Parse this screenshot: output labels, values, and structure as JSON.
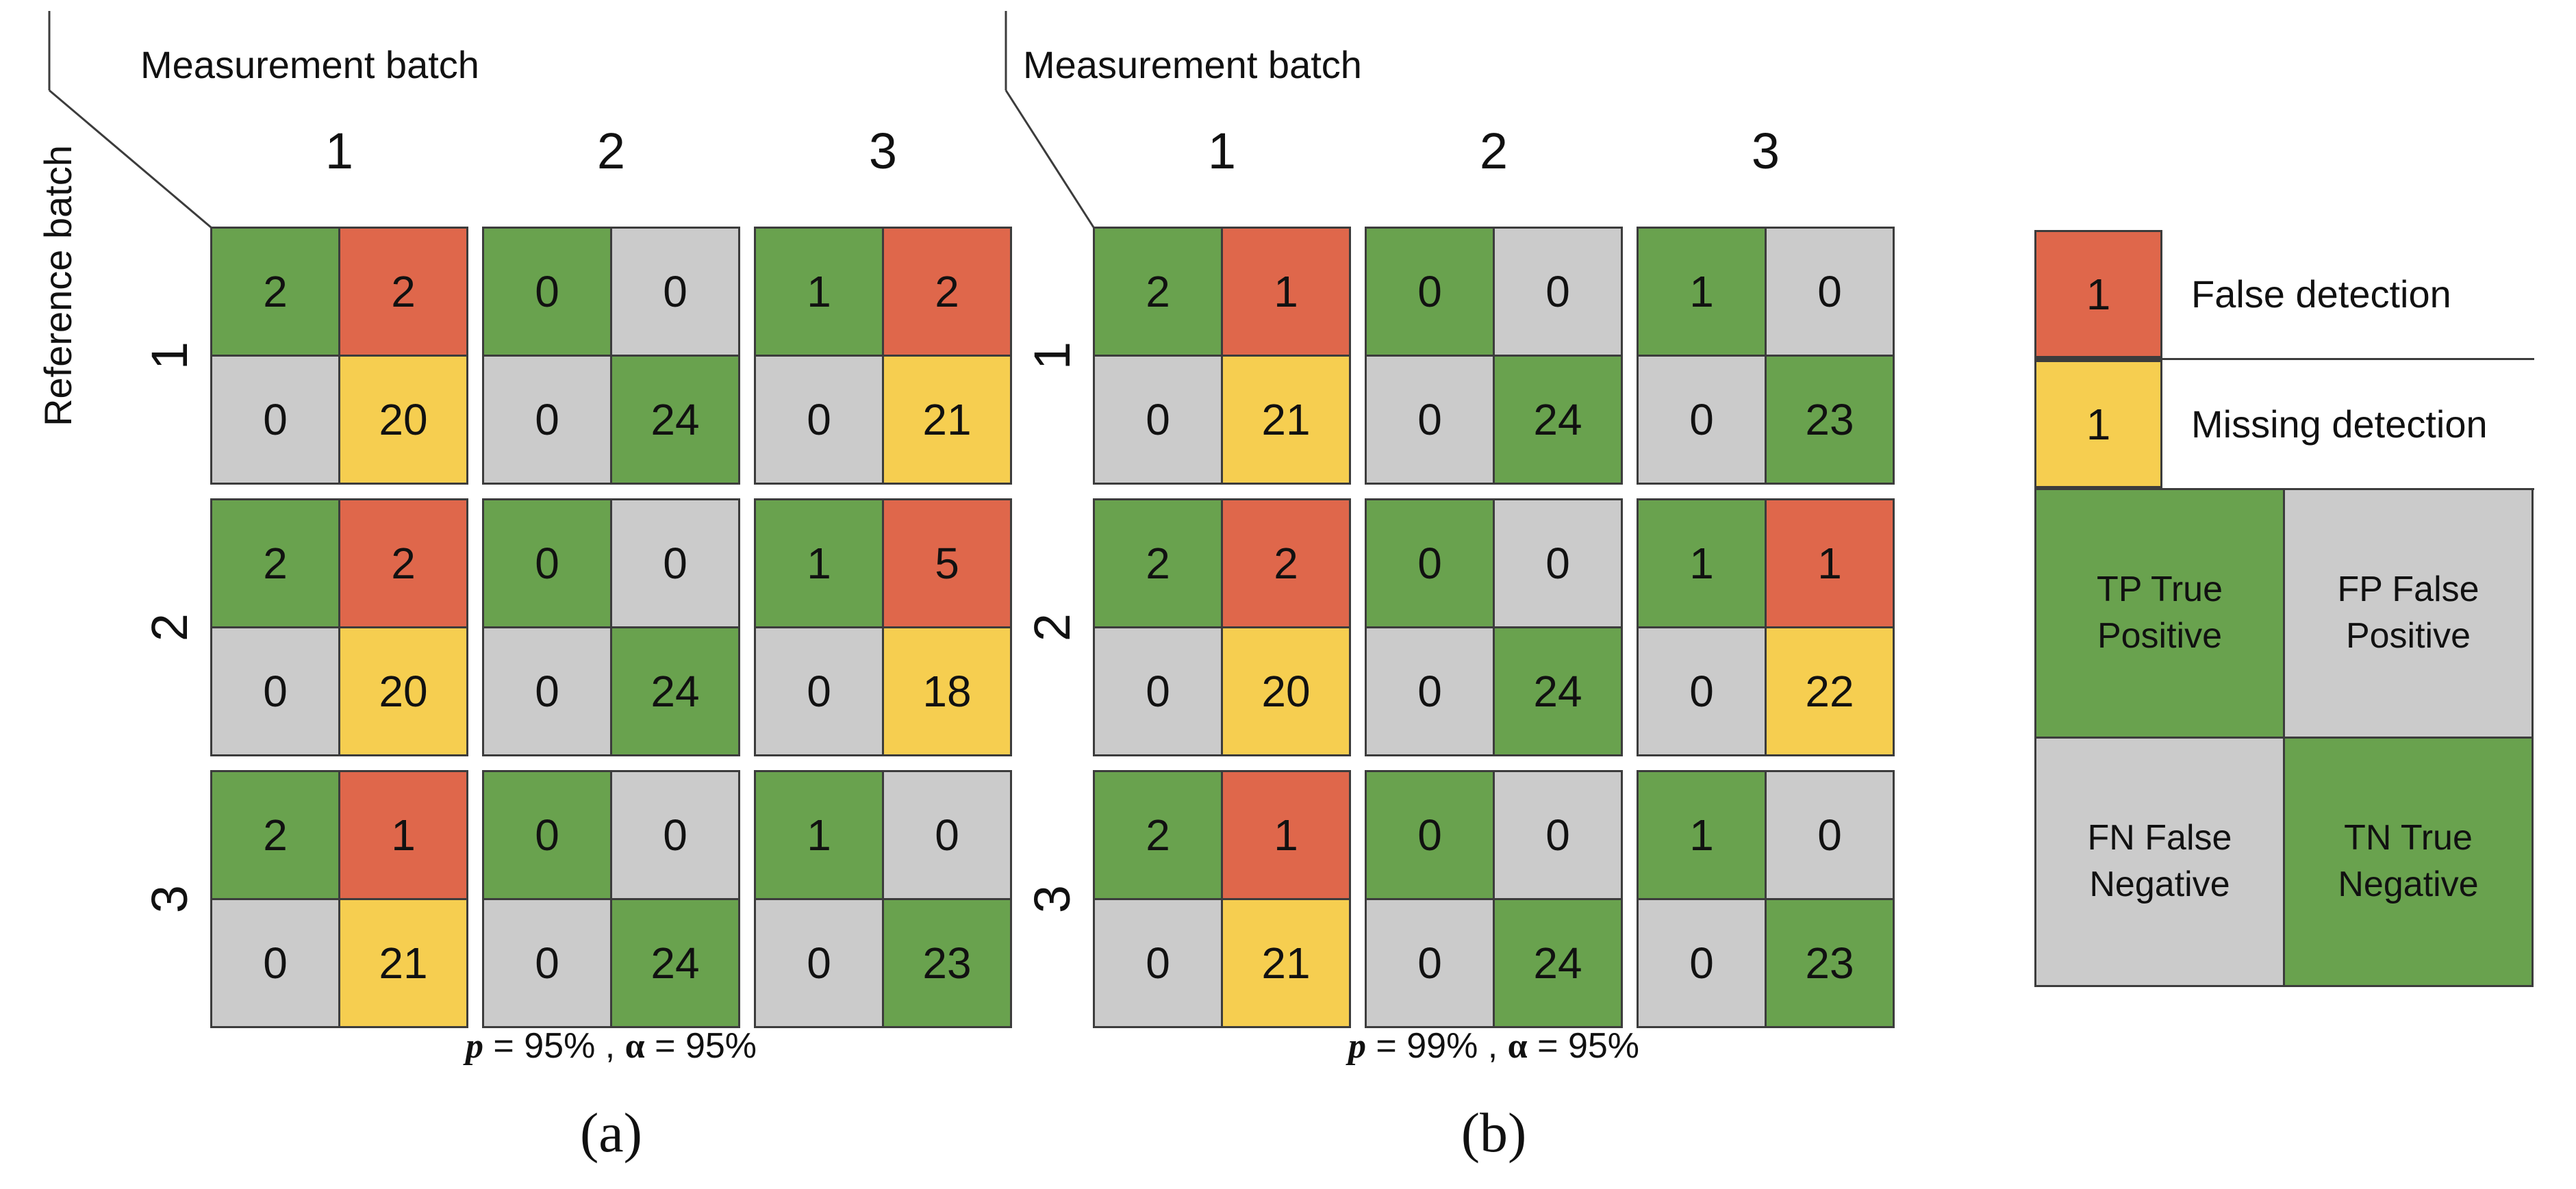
{
  "colors": {
    "green": "#69A24E",
    "red": "#DF674B",
    "yellow": "#F6CE50",
    "gray": "#CBCBCB",
    "border": "#3C3C3C"
  },
  "panels": [
    {
      "label": "(a)",
      "top_axis_label": "Measurement batch",
      "left_axis_label": "Reference batch",
      "col_headers": [
        "1",
        "2",
        "3"
      ],
      "row_headers": [
        "1",
        "2",
        "3"
      ],
      "caption": {
        "p_symbol": "p",
        "p_tail": " = 95% , ",
        "alpha_symbol": "α",
        "alpha_tail": " = 95%"
      },
      "matrices": [
        [
          {
            "tp": {
              "v": "2",
              "c": "green"
            },
            "fp": {
              "v": "2",
              "c": "red"
            },
            "fn": {
              "v": "0",
              "c": "gray"
            },
            "tn": {
              "v": "20",
              "c": "yellow"
            }
          },
          {
            "tp": {
              "v": "0",
              "c": "green"
            },
            "fp": {
              "v": "0",
              "c": "gray"
            },
            "fn": {
              "v": "0",
              "c": "gray"
            },
            "tn": {
              "v": "24",
              "c": "green"
            }
          },
          {
            "tp": {
              "v": "1",
              "c": "green"
            },
            "fp": {
              "v": "2",
              "c": "red"
            },
            "fn": {
              "v": "0",
              "c": "gray"
            },
            "tn": {
              "v": "21",
              "c": "yellow"
            }
          }
        ],
        [
          {
            "tp": {
              "v": "2",
              "c": "green"
            },
            "fp": {
              "v": "2",
              "c": "red"
            },
            "fn": {
              "v": "0",
              "c": "gray"
            },
            "tn": {
              "v": "20",
              "c": "yellow"
            }
          },
          {
            "tp": {
              "v": "0",
              "c": "green"
            },
            "fp": {
              "v": "0",
              "c": "gray"
            },
            "fn": {
              "v": "0",
              "c": "gray"
            },
            "tn": {
              "v": "24",
              "c": "green"
            }
          },
          {
            "tp": {
              "v": "1",
              "c": "green"
            },
            "fp": {
              "v": "5",
              "c": "red"
            },
            "fn": {
              "v": "0",
              "c": "gray"
            },
            "tn": {
              "v": "18",
              "c": "yellow"
            }
          }
        ],
        [
          {
            "tp": {
              "v": "2",
              "c": "green"
            },
            "fp": {
              "v": "1",
              "c": "red"
            },
            "fn": {
              "v": "0",
              "c": "gray"
            },
            "tn": {
              "v": "21",
              "c": "yellow"
            }
          },
          {
            "tp": {
              "v": "0",
              "c": "green"
            },
            "fp": {
              "v": "0",
              "c": "gray"
            },
            "fn": {
              "v": "0",
              "c": "gray"
            },
            "tn": {
              "v": "24",
              "c": "green"
            }
          },
          {
            "tp": {
              "v": "1",
              "c": "green"
            },
            "fp": {
              "v": "0",
              "c": "gray"
            },
            "fn": {
              "v": "0",
              "c": "gray"
            },
            "tn": {
              "v": "23",
              "c": "green"
            }
          }
        ]
      ]
    },
    {
      "label": "(b)",
      "top_axis_label": "Measurement batch",
      "left_axis_label": "",
      "col_headers": [
        "1",
        "2",
        "3"
      ],
      "row_headers": [
        "1",
        "2",
        "3"
      ],
      "caption": {
        "p_symbol": "p",
        "p_tail": " = 99% , ",
        "alpha_symbol": "α",
        "alpha_tail": " = 95%"
      },
      "matrices": [
        [
          {
            "tp": {
              "v": "2",
              "c": "green"
            },
            "fp": {
              "v": "1",
              "c": "red"
            },
            "fn": {
              "v": "0",
              "c": "gray"
            },
            "tn": {
              "v": "21",
              "c": "yellow"
            }
          },
          {
            "tp": {
              "v": "0",
              "c": "green"
            },
            "fp": {
              "v": "0",
              "c": "gray"
            },
            "fn": {
              "v": "0",
              "c": "gray"
            },
            "tn": {
              "v": "24",
              "c": "green"
            }
          },
          {
            "tp": {
              "v": "1",
              "c": "green"
            },
            "fp": {
              "v": "0",
              "c": "gray"
            },
            "fn": {
              "v": "0",
              "c": "gray"
            },
            "tn": {
              "v": "23",
              "c": "green"
            }
          }
        ],
        [
          {
            "tp": {
              "v": "2",
              "c": "green"
            },
            "fp": {
              "v": "2",
              "c": "red"
            },
            "fn": {
              "v": "0",
              "c": "gray"
            },
            "tn": {
              "v": "20",
              "c": "yellow"
            }
          },
          {
            "tp": {
              "v": "0",
              "c": "green"
            },
            "fp": {
              "v": "0",
              "c": "gray"
            },
            "fn": {
              "v": "0",
              "c": "gray"
            },
            "tn": {
              "v": "24",
              "c": "green"
            }
          },
          {
            "tp": {
              "v": "1",
              "c": "green"
            },
            "fp": {
              "v": "1",
              "c": "red"
            },
            "fn": {
              "v": "0",
              "c": "gray"
            },
            "tn": {
              "v": "22",
              "c": "yellow"
            }
          }
        ],
        [
          {
            "tp": {
              "v": "2",
              "c": "green"
            },
            "fp": {
              "v": "1",
              "c": "red"
            },
            "fn": {
              "v": "0",
              "c": "gray"
            },
            "tn": {
              "v": "21",
              "c": "yellow"
            }
          },
          {
            "tp": {
              "v": "0",
              "c": "green"
            },
            "fp": {
              "v": "0",
              "c": "gray"
            },
            "fn": {
              "v": "0",
              "c": "gray"
            },
            "tn": {
              "v": "24",
              "c": "green"
            }
          },
          {
            "tp": {
              "v": "1",
              "c": "green"
            },
            "fp": {
              "v": "0",
              "c": "gray"
            },
            "fn": {
              "v": "0",
              "c": "gray"
            },
            "tn": {
              "v": "23",
              "c": "green"
            }
          }
        ]
      ]
    }
  ],
  "legend": {
    "false_detection": {
      "value": "1",
      "label": "False detection",
      "color": "red"
    },
    "missing_detection": {
      "value": "1",
      "label": "Missing detection",
      "color": "yellow"
    },
    "matrix": [
      {
        "label": "TP True Positive",
        "color": "green"
      },
      {
        "label": "FP False Positive",
        "color": "gray"
      },
      {
        "label": "FN False Negative",
        "color": "gray"
      },
      {
        "label": "TN True Negative",
        "color": "green"
      }
    ]
  },
  "chart_data": [
    {
      "type": "heatmap",
      "panel": "(a)",
      "title": "p = 95% , α = 95%",
      "xlabel": "Measurement batch",
      "ylabel": "Reference batch",
      "x_categories": [
        "1",
        "2",
        "3"
      ],
      "y_categories": [
        "1",
        "2",
        "3"
      ],
      "cell_structure": [
        "TP",
        "FP",
        "FN",
        "TN"
      ],
      "values": [
        [
          [
            2,
            2,
            0,
            20
          ],
          [
            0,
            0,
            0,
            24
          ],
          [
            1,
            2,
            0,
            21
          ]
        ],
        [
          [
            2,
            2,
            0,
            20
          ],
          [
            0,
            0,
            0,
            24
          ],
          [
            1,
            5,
            0,
            18
          ]
        ],
        [
          [
            2,
            1,
            0,
            21
          ],
          [
            0,
            0,
            0,
            24
          ],
          [
            1,
            0,
            0,
            23
          ]
        ]
      ]
    },
    {
      "type": "heatmap",
      "panel": "(b)",
      "title": "p = 99% , α = 95%",
      "xlabel": "Measurement batch",
      "ylabel": "Reference batch",
      "x_categories": [
        "1",
        "2",
        "3"
      ],
      "y_categories": [
        "1",
        "2",
        "3"
      ],
      "cell_structure": [
        "TP",
        "FP",
        "FN",
        "TN"
      ],
      "values": [
        [
          [
            2,
            1,
            0,
            21
          ],
          [
            0,
            0,
            0,
            24
          ],
          [
            1,
            0,
            0,
            23
          ]
        ],
        [
          [
            2,
            2,
            0,
            20
          ],
          [
            0,
            0,
            0,
            24
          ],
          [
            1,
            1,
            0,
            22
          ]
        ],
        [
          [
            2,
            1,
            0,
            21
          ],
          [
            0,
            0,
            0,
            24
          ],
          [
            1,
            0,
            0,
            23
          ]
        ]
      ]
    }
  ]
}
